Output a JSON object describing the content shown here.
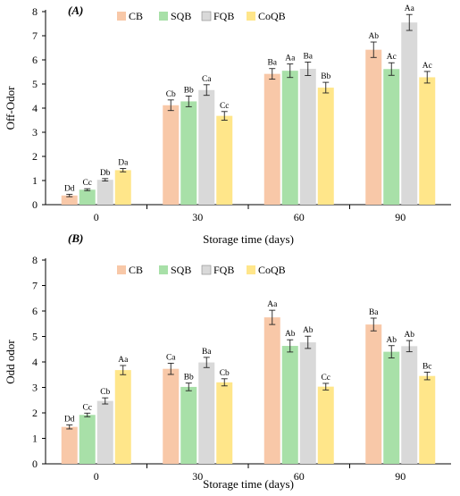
{
  "figure": {
    "colors": {
      "CB": "#F8C8A8",
      "SQB": "#A8E0A8",
      "FQB": "#D9D9D9",
      "CoQB": "#FFE68A"
    }
  },
  "chart_data": [
    {
      "type": "bar",
      "panel_label": "(A)",
      "xlabel": "Storage time (days)",
      "ylabel": "Off-Odor",
      "ylim": [
        0,
        8
      ],
      "yticks": [
        0,
        1,
        2,
        3,
        4,
        5,
        6,
        7,
        8
      ],
      "categories": [
        "0",
        "30",
        "60",
        "90"
      ],
      "legend_position": "top-center",
      "grid": false,
      "series": [
        {
          "name": "CB",
          "values": [
            0.38,
            4.12,
            5.42,
            6.42
          ],
          "errors": [
            0.05,
            0.22,
            0.22,
            0.32
          ],
          "labels": [
            "Dd",
            "Cb",
            "Ba",
            "Ab"
          ]
        },
        {
          "name": "SQB",
          "values": [
            0.62,
            4.28,
            5.55,
            5.62
          ],
          "errors": [
            0.04,
            0.22,
            0.28,
            0.26
          ],
          "labels": [
            "Cc",
            "Bb",
            "Aa",
            "Ac"
          ]
        },
        {
          "name": "FQB",
          "values": [
            1.03,
            4.75,
            5.63,
            7.55
          ],
          "errors": [
            0.05,
            0.22,
            0.28,
            0.33
          ],
          "labels": [
            "Db",
            "Ca",
            "Ba",
            "Aa"
          ]
        },
        {
          "name": "CoQB",
          "values": [
            1.43,
            3.68,
            4.85,
            5.28
          ],
          "errors": [
            0.07,
            0.18,
            0.22,
            0.24
          ],
          "labels": [
            "Da",
            "Cc",
            "Bb",
            "Ac"
          ]
        }
      ]
    },
    {
      "type": "bar",
      "panel_label": "(B)",
      "xlabel": "Storage time (days)",
      "ylabel": "Odd odor",
      "ylim": [
        0,
        8
      ],
      "yticks": [
        0,
        1,
        2,
        3,
        4,
        5,
        6,
        7,
        8
      ],
      "categories": [
        "0",
        "30",
        "60",
        "90"
      ],
      "legend_position": "top-center",
      "grid": false,
      "series": [
        {
          "name": "CB",
          "values": [
            1.45,
            3.73,
            5.75,
            5.47
          ],
          "errors": [
            0.08,
            0.22,
            0.28,
            0.25
          ],
          "labels": [
            "Dd",
            "Ca",
            "Aa",
            "Ba"
          ]
        },
        {
          "name": "SQB",
          "values": [
            1.92,
            3.02,
            4.63,
            4.4
          ],
          "errors": [
            0.07,
            0.15,
            0.24,
            0.24
          ],
          "labels": [
            "Cc",
            "Bb",
            "Ab",
            "Ab"
          ]
        },
        {
          "name": "FQB",
          "values": [
            2.47,
            3.98,
            4.77,
            4.62
          ],
          "errors": [
            0.12,
            0.2,
            0.24,
            0.22
          ],
          "labels": [
            "Cb",
            "Ba",
            "Ab",
            "Ab"
          ]
        },
        {
          "name": "CoQB",
          "values": [
            3.68,
            3.2,
            3.03,
            3.45
          ],
          "errors": [
            0.18,
            0.14,
            0.13,
            0.15
          ],
          "labels": [
            "Aa",
            "Cb",
            "Cc",
            "Bc"
          ]
        }
      ]
    }
  ]
}
